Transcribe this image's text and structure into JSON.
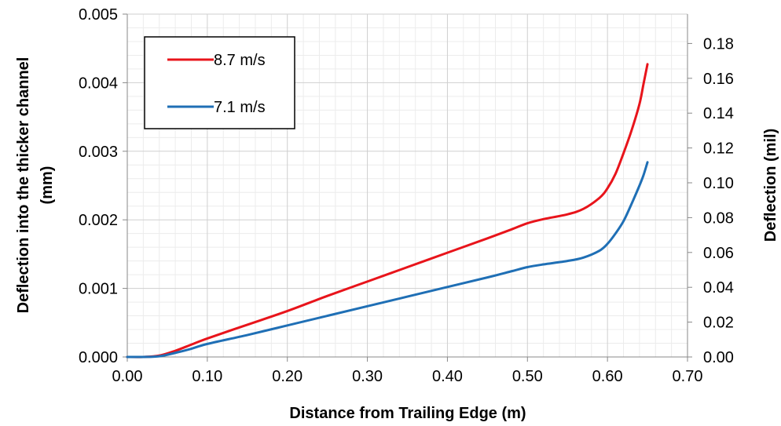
{
  "chart_data": {
    "type": "line",
    "title": "",
    "xlabel": "Distance from Trailing Edge (m)",
    "ylabel": "Deflection into the thicker channel (mm)",
    "ylabel_lines": [
      "Deflection into the thicker channel",
      "(mm)"
    ],
    "y2label": "Deflection (mil)",
    "xlim": [
      0,
      0.7
    ],
    "ylim": [
      0,
      0.005
    ],
    "y2lim": [
      0,
      0.19685
    ],
    "x_ticks": [
      "0.00",
      "0.10",
      "0.20",
      "0.30",
      "0.40",
      "0.50",
      "0.60",
      "0.70"
    ],
    "y_ticks": [
      "0.000",
      "0.001",
      "0.002",
      "0.003",
      "0.004",
      "0.005"
    ],
    "y2_ticks": [
      "0.00",
      "0.02",
      "0.04",
      "0.06",
      "0.08",
      "0.10",
      "0.12",
      "0.14",
      "0.16",
      "0.18"
    ],
    "grid": true,
    "minor_grid": true,
    "legend_position": "top-left",
    "series": [
      {
        "name": "8.7 m/s",
        "color": "#e8141b",
        "x": [
          0,
          0.02,
          0.04,
          0.06,
          0.08,
          0.1,
          0.15,
          0.2,
          0.25,
          0.3,
          0.35,
          0.4,
          0.45,
          0.48,
          0.5,
          0.52,
          0.55,
          0.57,
          0.59,
          0.6,
          0.61,
          0.62,
          0.63,
          0.64,
          0.645,
          0.65
        ],
        "y": [
          0,
          0,
          2e-05,
          9e-05,
          0.00018,
          0.00027,
          0.00047,
          0.00067,
          0.00089,
          0.0011,
          0.00131,
          0.00152,
          0.00173,
          0.00186,
          0.00195,
          0.00201,
          0.00208,
          0.00216,
          0.00232,
          0.00246,
          0.00267,
          0.00297,
          0.0033,
          0.00369,
          0.00398,
          0.00427
        ]
      },
      {
        "name": "7.1 m/s",
        "color": "#1f6fb5",
        "x": [
          0,
          0.02,
          0.04,
          0.06,
          0.08,
          0.1,
          0.15,
          0.2,
          0.25,
          0.3,
          0.35,
          0.4,
          0.45,
          0.48,
          0.5,
          0.52,
          0.55,
          0.57,
          0.59,
          0.6,
          0.61,
          0.62,
          0.63,
          0.64,
          0.645,
          0.65
        ],
        "y": [
          0,
          0,
          1e-05,
          6e-05,
          0.00012,
          0.00019,
          0.00032,
          0.00046,
          0.0006,
          0.00074,
          0.00088,
          0.00102,
          0.00116,
          0.00125,
          0.00131,
          0.00135,
          0.0014,
          0.00145,
          0.00155,
          0.00165,
          0.0018,
          0.00198,
          0.00223,
          0.0025,
          0.00265,
          0.00284
        ]
      }
    ]
  }
}
